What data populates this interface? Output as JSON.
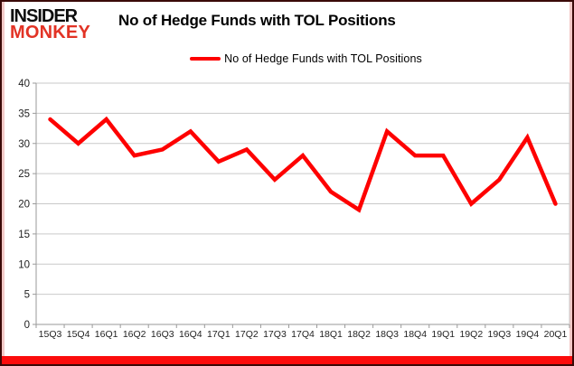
{
  "logo": {
    "line1": "INSIDER",
    "line2": "MONKEY"
  },
  "header": {
    "title": "No of Hedge Funds with TOL Positions"
  },
  "legend": {
    "label": "No of Hedge Funds with TOL Positions"
  },
  "colors": {
    "line": "#fe0000",
    "monkey_red": "#e23325",
    "bottom_bar": "#fb0c0c",
    "grid": "#c9c9c9",
    "axis": "#9a9a9a",
    "tick_label": "#1f1f1f"
  },
  "chart_data": {
    "type": "line",
    "title": "No of Hedge Funds with TOL Positions",
    "categories": [
      "15Q3",
      "15Q4",
      "16Q1",
      "16Q2",
      "16Q3",
      "16Q4",
      "17Q1",
      "17Q2",
      "17Q3",
      "17Q4",
      "18Q1",
      "18Q2",
      "18Q3",
      "18Q4",
      "19Q1",
      "19Q2",
      "19Q3",
      "19Q4",
      "20Q1"
    ],
    "series": [
      {
        "name": "No of Hedge Funds with TOL Positions",
        "values": [
          34,
          30,
          34,
          28,
          29,
          32,
          27,
          29,
          24,
          28,
          22,
          19,
          32,
          28,
          28,
          20,
          24,
          31,
          20
        ]
      }
    ],
    "xlabel": "",
    "ylabel": "",
    "ylim": [
      0,
      40
    ],
    "ytick_step": 5,
    "grid": true,
    "legend_position": "top-center"
  }
}
